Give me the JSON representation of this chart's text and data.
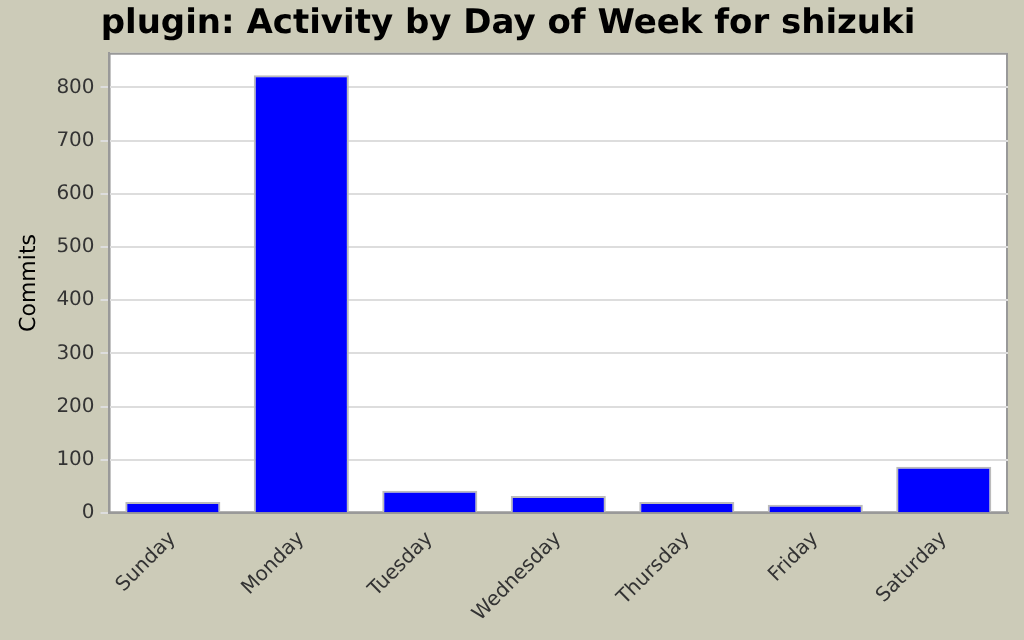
{
  "chart_data": {
    "type": "bar",
    "title": "plugin: Activity by Day of Week for shizuki",
    "ylabel": "Commits",
    "categories": [
      "Sunday",
      "Monday",
      "Tuesday",
      "Wednesday",
      "Thursday",
      "Friday",
      "Saturday"
    ],
    "values": [
      21,
      823,
      42,
      32,
      21,
      16,
      87
    ],
    "color": "#0000ff",
    "ylim": [
      0,
      865
    ],
    "yticks": [
      0,
      100,
      200,
      300,
      400,
      500,
      600,
      700,
      800
    ],
    "grid": "y",
    "legend": false
  }
}
